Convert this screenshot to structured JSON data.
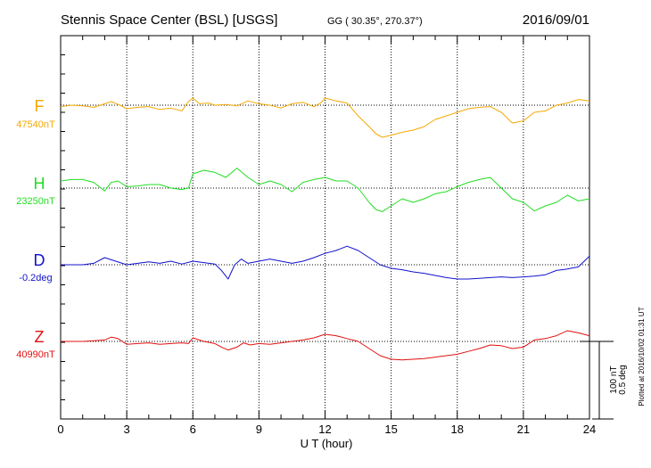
{
  "header": {
    "station": "Stennis Space Center (BSL)  [USGS]",
    "coords": "GG ( 30.35°, 270.37°)",
    "date": "2016/09/01"
  },
  "footer": {
    "plotted": "Plotted at 2016/10/02 01:31  UT"
  },
  "chart_data": {
    "type": "line",
    "xlabel": "U T (hour)",
    "xlim": [
      0,
      24
    ],
    "x_ticks": [
      "0",
      "3",
      "6",
      "9",
      "12",
      "15",
      "18",
      "21",
      "24"
    ],
    "scale_label_1": "100 nT",
    "scale_label_2": "0.5 deg",
    "grid": true,
    "series": [
      {
        "name": "F",
        "baseline_label": "47540nT",
        "color": "#f5a800",
        "x": [
          0,
          0.5,
          1,
          1.5,
          2,
          2.3,
          2.7,
          3,
          3.5,
          4,
          4.5,
          5,
          5.5,
          5.8,
          6,
          6.3,
          6.7,
          7,
          7.5,
          8,
          8.5,
          9,
          9.5,
          10,
          10.5,
          11,
          11.5,
          11.8,
          12,
          12.5,
          13,
          13.5,
          14,
          14.3,
          14.6,
          15,
          15.5,
          16,
          16.5,
          17,
          17.5,
          18,
          18.5,
          19,
          19.5,
          20,
          20.5,
          21,
          21.5,
          22,
          22.5,
          23,
          23.5,
          24
        ],
        "values": [
          -2,
          0,
          -1,
          -3,
          2,
          5,
          0,
          -5,
          -3,
          -2,
          -6,
          -4,
          -8,
          5,
          10,
          2,
          3,
          0,
          1,
          -1,
          6,
          2,
          0,
          -4,
          2,
          4,
          -2,
          3,
          10,
          6,
          3,
          -15,
          -30,
          -40,
          -45,
          -42,
          -38,
          -35,
          -30,
          -20,
          -15,
          -10,
          -5,
          -3,
          -2,
          -10,
          -25,
          -22,
          -10,
          -8,
          0,
          3,
          8,
          6
        ]
      },
      {
        "name": "H",
        "baseline_label": "23250nT",
        "color": "#22dd22",
        "x": [
          0,
          0.5,
          1,
          1.5,
          2,
          2.3,
          2.6,
          3,
          3.5,
          4,
          4.5,
          5,
          5.5,
          5.8,
          6,
          6.5,
          7,
          7.5,
          8,
          8.5,
          9,
          9.5,
          10,
          10.5,
          11,
          11.5,
          12,
          12.5,
          13,
          13.5,
          14,
          14.3,
          14.6,
          15,
          15.5,
          16,
          16.5,
          17,
          17.5,
          18,
          18.5,
          19,
          19.5,
          20,
          20.5,
          21,
          21.5,
          22,
          22.5,
          23,
          23.5,
          24
        ],
        "values": [
          10,
          12,
          12,
          8,
          -4,
          8,
          10,
          2,
          3,
          5,
          5,
          0,
          -2,
          0,
          20,
          25,
          22,
          15,
          28,
          15,
          5,
          10,
          5,
          -5,
          8,
          12,
          15,
          10,
          10,
          0,
          -20,
          -30,
          -33,
          -25,
          -15,
          -20,
          -15,
          -8,
          -5,
          2,
          8,
          12,
          15,
          0,
          -15,
          -20,
          -32,
          -25,
          -20,
          -10,
          -18,
          -15
        ]
      },
      {
        "name": "D",
        "baseline_label": "-0.2deg",
        "color": "#1111cc",
        "x": [
          0,
          0.5,
          1,
          1.5,
          2,
          2.5,
          3,
          3.5,
          4,
          4.5,
          5,
          5.5,
          6,
          6.5,
          7,
          7.3,
          7.6,
          7.9,
          8.2,
          8.5,
          9,
          9.5,
          10,
          10.5,
          11,
          11.5,
          12,
          12.5,
          13,
          13.5,
          14,
          14.5,
          15,
          15.5,
          16,
          16.5,
          17,
          17.5,
          18,
          18.5,
          19,
          19.5,
          20,
          20.5,
          21,
          21.5,
          22,
          22.5,
          23,
          23.5,
          24
        ],
        "values": [
          0,
          0,
          0,
          2,
          10,
          5,
          0,
          2,
          4,
          2,
          5,
          1,
          5,
          3,
          1,
          -8,
          -20,
          0,
          8,
          2,
          5,
          8,
          5,
          2,
          5,
          10,
          16,
          20,
          26,
          20,
          10,
          0,
          -5,
          -7,
          -10,
          -12,
          -15,
          -18,
          -20,
          -20,
          -19,
          -18,
          -17,
          -18,
          -17,
          -16,
          -14,
          -8,
          -6,
          -3,
          12
        ]
      },
      {
        "name": "Z",
        "baseline_label": "40990nT",
        "color": "#e01010",
        "x": [
          0,
          0.5,
          1,
          1.5,
          2,
          2.3,
          2.6,
          3,
          3.5,
          4,
          4.5,
          5,
          5.5,
          5.8,
          6,
          6.5,
          7,
          7.3,
          7.6,
          8,
          8.3,
          8.6,
          9,
          9.5,
          10,
          10.5,
          11,
          11.5,
          12,
          12.5,
          13,
          13.5,
          14,
          14.5,
          15,
          15.5,
          16,
          16.5,
          17,
          17.5,
          18,
          18.5,
          19,
          19.5,
          20,
          20.5,
          21,
          21.5,
          22,
          22.5,
          23,
          23.5,
          24
        ],
        "values": [
          0,
          0,
          0,
          1,
          2,
          6,
          4,
          -4,
          -3,
          -2,
          -4,
          -3,
          -2,
          -3,
          5,
          0,
          -3,
          -8,
          -12,
          -8,
          -2,
          -5,
          -3,
          -4,
          -2,
          0,
          2,
          5,
          10,
          8,
          4,
          0,
          -10,
          -20,
          -25,
          -26,
          -25,
          -24,
          -22,
          -20,
          -18,
          -14,
          -10,
          -5,
          -6,
          -10,
          -8,
          2,
          4,
          8,
          15,
          12,
          8
        ]
      }
    ]
  }
}
